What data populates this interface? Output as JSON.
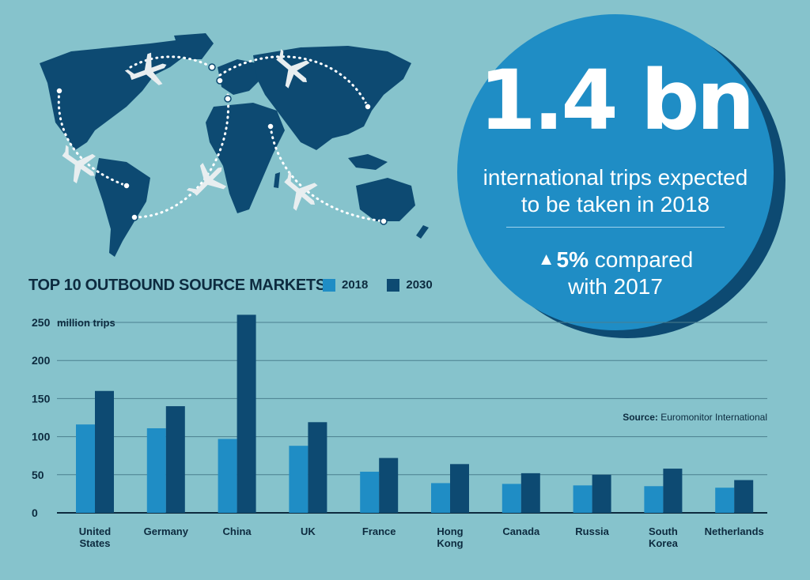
{
  "headline": {
    "value": "1.4 bn",
    "subtitle_line1": "international trips expected",
    "subtitle_line2": "to be taken in 2018",
    "change_icon": "triangle-up-icon",
    "change_value": "5%",
    "change_text_line1": " compared",
    "change_text_line2": "with 2017"
  },
  "map": {
    "description_icon": "world-map-icon"
  },
  "source": {
    "label": "Source:",
    "value": "Euromonitor International"
  },
  "colors": {
    "background": "#86c3cc",
    "series_2018": "#1f8dc5",
    "series_2030": "#0d4a72",
    "text_dark": "#0d2b3f"
  },
  "chart_data": {
    "type": "bar",
    "title": "TOP 10 OUTBOUND SOURCE MARKETS",
    "ylabel": "million trips",
    "ylim": [
      0,
      250
    ],
    "yticks": [
      0,
      50,
      100,
      150,
      200,
      250
    ],
    "categories": [
      [
        "United",
        "States"
      ],
      [
        "Germany"
      ],
      [
        "China"
      ],
      [
        "UK"
      ],
      [
        "France"
      ],
      [
        "Hong",
        "Kong"
      ],
      [
        "Canada"
      ],
      [
        "Russia"
      ],
      [
        "South",
        "Korea"
      ],
      [
        "Netherlands"
      ]
    ],
    "series": [
      {
        "name": "2018",
        "color": "#1f8dc5",
        "values": [
          116,
          111,
          97,
          88,
          54,
          39,
          38,
          36,
          35,
          33
        ]
      },
      {
        "name": "2030",
        "color": "#0d4a72",
        "values": [
          160,
          140,
          260,
          119,
          72,
          64,
          52,
          50,
          58,
          43
        ]
      }
    ],
    "grid": true,
    "legend": "top"
  }
}
